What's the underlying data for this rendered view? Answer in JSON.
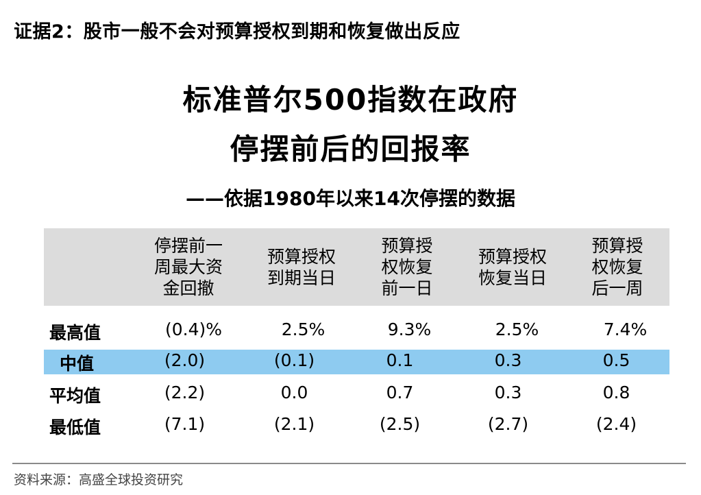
{
  "heading": "证据2：股市一般不会对预算授权到期和恢复做出反应",
  "title_line1": "标准普尔500指数在政府",
  "title_line2": "停摆前后的回报率",
  "subtitle": "——依据1980年以来14次停摆的数据",
  "table": {
    "columns": [
      [
        "停摆前一",
        "周最大资",
        "金回撤"
      ],
      [
        "预算授权",
        "到期当日"
      ],
      [
        "预算授",
        "权恢复",
        "前一日"
      ],
      [
        "预算授权",
        "恢复当日"
      ],
      [
        "预算授",
        "权恢复",
        "后一周"
      ]
    ],
    "rows": [
      {
        "label": "最高值",
        "values": [
          "(0.4)%",
          "2.5%",
          "9.3%",
          "2.5%",
          "7.4%"
        ]
      },
      {
        "label": "中值",
        "values": [
          "(2.0)",
          "(0.1)",
          "0.1",
          "0.3",
          "0.5"
        ]
      },
      {
        "label": "平均值",
        "values": [
          "(2.2)",
          "0.0",
          "0.7",
          "0.3",
          "0.8"
        ]
      },
      {
        "label": "最低值",
        "values": [
          "(7.1)",
          "(2.1)",
          "(2.5)",
          "(2.7)",
          "(2.4)"
        ]
      }
    ]
  },
  "source": "资料来源：高盛全球投资研究",
  "colors": {
    "header_band": "#dcdcdc",
    "highlight_band": "#8ecbf0",
    "rule": "#8a8a8a"
  }
}
